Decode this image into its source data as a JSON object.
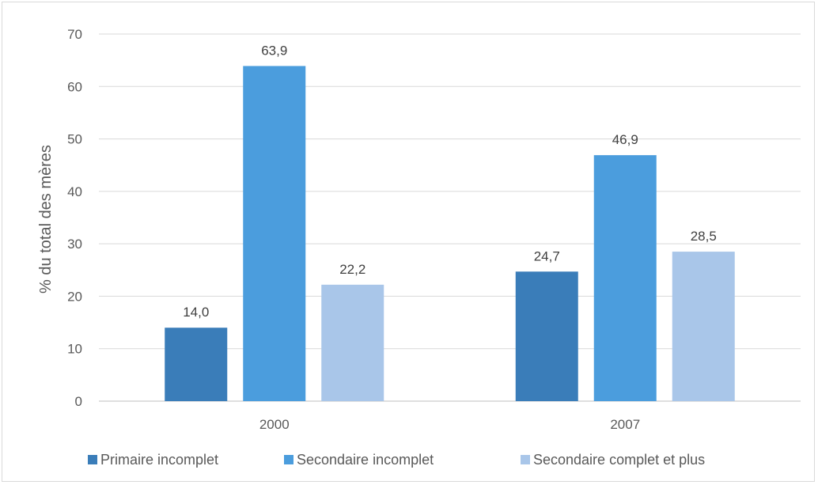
{
  "chart_data": {
    "type": "bar",
    "title": "",
    "xlabel": "",
    "ylabel": "% du total des mères",
    "categories": [
      "2000",
      "2007"
    ],
    "ylim": [
      0,
      70
    ],
    "yticks": [
      0,
      10,
      20,
      30,
      40,
      50,
      60,
      70
    ],
    "grid": true,
    "legend_position": "bottom",
    "value_format": "one decimal, comma separator",
    "series": [
      {
        "name": "Primaire incomplet",
        "color": "#3a7db9",
        "values": [
          14.0,
          24.7
        ],
        "labels": [
          "14,0",
          "24,7"
        ]
      },
      {
        "name": "Secondaire incomplet",
        "color": "#4b9ddd",
        "values": [
          63.9,
          46.9
        ],
        "labels": [
          "63,9",
          "46,9"
        ]
      },
      {
        "name": "Secondaire complet et plus",
        "color": "#a9c6e9",
        "values": [
          22.2,
          28.5
        ],
        "labels": [
          "22,2",
          "28,5"
        ]
      }
    ]
  }
}
